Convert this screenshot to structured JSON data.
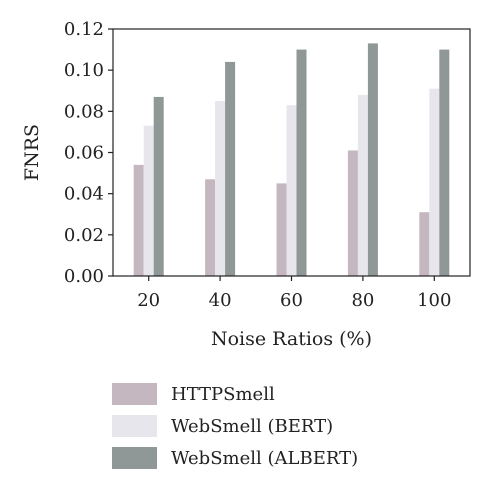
{
  "chart_data": {
    "type": "bar",
    "xlabel": "Noise Ratios (%)",
    "ylabel": "FNRS",
    "categories": [
      "20",
      "40",
      "60",
      "80",
      "100"
    ],
    "ylim": [
      0,
      0.12
    ],
    "yticks": [
      "0.00",
      "0.02",
      "0.04",
      "0.06",
      "0.08",
      "0.10",
      "0.12"
    ],
    "grid": false,
    "legend_position": "bottom",
    "series": [
      {
        "name": "HTTPSmell",
        "color": "#c5b7bf",
        "values": [
          0.054,
          0.047,
          0.045,
          0.061,
          0.031
        ]
      },
      {
        "name": "WebSmell (BERT)",
        "color": "#e7e6ec",
        "values": [
          0.073,
          0.085,
          0.083,
          0.088,
          0.091
        ]
      },
      {
        "name": "WebSmell (ALBERT)",
        "color": "#8f9896",
        "values": [
          0.087,
          0.104,
          0.11,
          0.113,
          0.11
        ]
      }
    ]
  }
}
